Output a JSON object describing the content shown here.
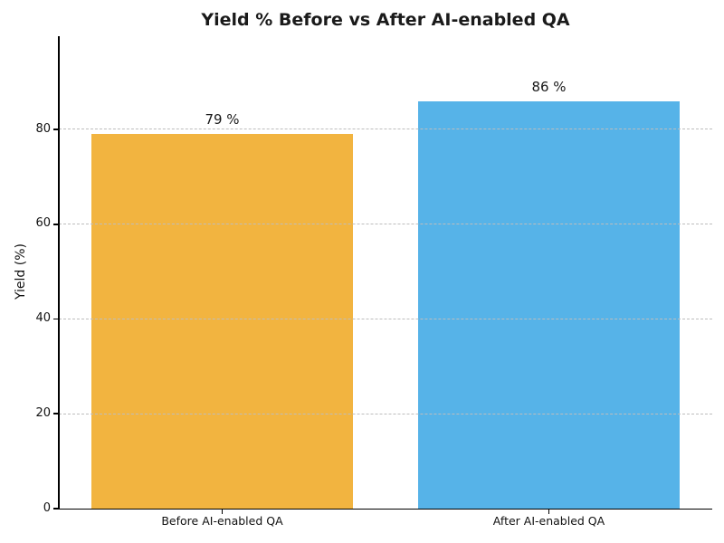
{
  "chart_data": {
    "type": "bar",
    "title": "Yield % Before vs After AI-enabled QA",
    "categories": [
      "Before AI-enabled QA",
      "After AI-enabled QA"
    ],
    "values": [
      79,
      86
    ],
    "value_labels": [
      "79 %",
      "86 %"
    ],
    "series_colors": [
      "#F2B440",
      "#56B3E8"
    ],
    "xlabel": "",
    "ylabel": "Yield (%)",
    "yticks": [
      0,
      20,
      40,
      60,
      80
    ],
    "ylim": [
      0,
      99.7
    ],
    "grid": "horizontal-dashed-over-bars",
    "grid_color": "#bdbdbd",
    "axis_color": "#000000",
    "background_color": "#ffffff",
    "legend": "none"
  }
}
